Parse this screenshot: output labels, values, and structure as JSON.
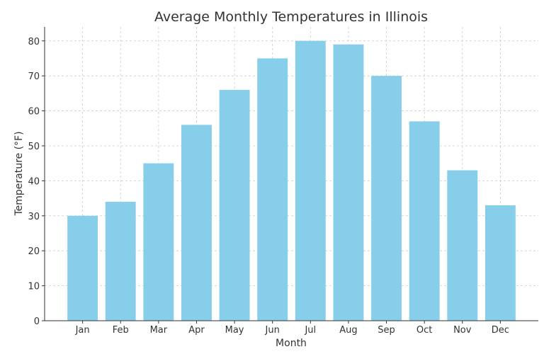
{
  "chart_data": {
    "type": "bar",
    "title": "Average Monthly Temperatures in Illinois",
    "xlabel": "Month",
    "ylabel": "Temperature (°F)",
    "categories": [
      "Jan",
      "Feb",
      "Mar",
      "Apr",
      "May",
      "Jun",
      "Jul",
      "Aug",
      "Sep",
      "Oct",
      "Nov",
      "Dec"
    ],
    "values": [
      30,
      34,
      45,
      56,
      66,
      75,
      80,
      79,
      70,
      57,
      43,
      33
    ],
    "ylim": [
      0,
      84
    ],
    "yticks": [
      0,
      10,
      20,
      30,
      40,
      50,
      60,
      70,
      80
    ],
    "grid": true,
    "bar_color": "#87CEEB"
  }
}
